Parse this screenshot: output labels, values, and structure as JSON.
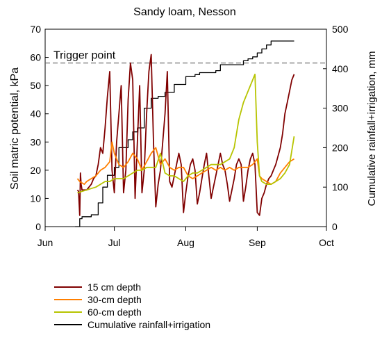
{
  "chart_data": {
    "type": "line",
    "title": "Sandy loam, Nesson",
    "xlabel": "",
    "ylabel": "Soil matric potential, kPa",
    "y2label": "Cumulative rainfall+irrigation, mm",
    "x_ticks": [
      {
        "label": "Jun",
        "day": 0
      },
      {
        "label": "Jul",
        "day": 30
      },
      {
        "label": "Aug",
        "day": 61
      },
      {
        "label": "Sep",
        "day": 92
      },
      {
        "label": "Oct",
        "day": 122
      }
    ],
    "ylim": [
      0,
      70
    ],
    "yticks": [
      0,
      10,
      20,
      30,
      40,
      50,
      60,
      70
    ],
    "y2lim": [
      0,
      500
    ],
    "y2ticks": [
      0,
      100,
      200,
      300,
      400,
      500
    ],
    "grid": false,
    "legend_position": "bottom-left",
    "annotations": [
      {
        "text": "Trigger point",
        "y": 58,
        "style": "dashed",
        "color": "#666666"
      }
    ],
    "series": [
      {
        "name": "15 cm depth",
        "color": "#800000",
        "axis": "left",
        "x": [
          14,
          14.5,
          15,
          15.3,
          15.6,
          16,
          17,
          18,
          20,
          21,
          22,
          23,
          24,
          25,
          26,
          27,
          28,
          29,
          30,
          31,
          32,
          33,
          34,
          35,
          36,
          37,
          38,
          39,
          40,
          41,
          42,
          43,
          44,
          45,
          46,
          47,
          48,
          49,
          50,
          51,
          52,
          53,
          54,
          55,
          56,
          57,
          58,
          59,
          60,
          61,
          62,
          63,
          64,
          65,
          66,
          67,
          68,
          69,
          70,
          71,
          72,
          73,
          74,
          75,
          76,
          77,
          78,
          79,
          80,
          81,
          82,
          83,
          84,
          85,
          86,
          87,
          88,
          89,
          90,
          91,
          92,
          93,
          94,
          95,
          96,
          97,
          98,
          99,
          100,
          101,
          102,
          103,
          104,
          105,
          106,
          107,
          108
        ],
        "y": [
          13,
          12.5,
          4,
          19,
          15,
          13,
          13,
          13,
          15,
          17,
          18,
          22,
          28,
          26,
          35,
          46,
          55,
          20,
          12,
          30,
          40,
          50,
          12,
          20,
          45,
          58,
          52,
          10,
          30,
          50,
          12,
          20,
          40,
          55,
          61,
          30,
          7,
          15,
          20,
          30,
          40,
          55,
          16,
          14,
          18,
          22,
          26,
          22,
          5,
          12,
          18,
          22,
          24,
          20,
          8,
          12,
          17,
          22,
          26,
          18,
          10,
          14,
          18,
          22,
          26,
          22,
          20,
          15,
          9,
          13,
          17,
          22,
          24,
          22,
          9,
          14,
          20,
          24,
          26,
          22,
          5,
          4,
          10,
          12,
          15,
          17,
          18,
          20,
          22,
          25,
          28,
          33,
          40,
          44,
          48,
          52,
          54
        ]
      },
      {
        "name": "30-cm depth",
        "color": "#ff7f00",
        "axis": "left",
        "x": [
          14,
          15,
          16,
          17,
          18,
          20,
          22,
          24,
          26,
          28,
          29,
          30,
          32,
          34,
          36,
          38,
          40,
          42,
          44,
          46,
          48,
          50,
          52,
          54,
          56,
          58,
          60,
          62,
          64,
          66,
          68,
          70,
          72,
          74,
          76,
          78,
          80,
          82,
          84,
          86,
          88,
          90,
          91,
          92,
          93,
          94,
          96,
          98,
          100,
          102,
          104,
          106,
          108
        ],
        "y": [
          17,
          16,
          15.5,
          15,
          16,
          17,
          18,
          20,
          21,
          23,
          30,
          26,
          22,
          21,
          23,
          26,
          24,
          20,
          23,
          26,
          28,
          22,
          24,
          21,
          20,
          21,
          21,
          18,
          17,
          18,
          19,
          20,
          21,
          20,
          21,
          20,
          21,
          20,
          21,
          21,
          21,
          22,
          23,
          24,
          18,
          17,
          16,
          15,
          16,
          19,
          21,
          23,
          24
        ]
      },
      {
        "name": "60-cm depth",
        "color": "#b7c400",
        "axis": "left",
        "x": [
          14,
          16,
          18,
          20,
          22,
          24,
          26,
          28,
          30,
          32,
          34,
          36,
          38,
          40,
          42,
          44,
          46,
          48,
          50,
          52,
          54,
          56,
          58,
          60,
          62,
          64,
          66,
          68,
          70,
          72,
          74,
          76,
          78,
          80,
          82,
          84,
          86,
          88,
          90,
          91,
          92,
          93,
          94,
          96,
          98,
          100,
          102,
          104,
          106,
          107,
          108
        ],
        "y": [
          12,
          12.5,
          13,
          13.5,
          14,
          15,
          16,
          16,
          17,
          17,
          17,
          18,
          19,
          20,
          20,
          21,
          21,
          21,
          26,
          19,
          18,
          18,
          17,
          16,
          18,
          19,
          19,
          20,
          21,
          22,
          22,
          22,
          23,
          24,
          28,
          38,
          44,
          48,
          52,
          54,
          30,
          18,
          16,
          15,
          15,
          16,
          17,
          19,
          22,
          27,
          32
        ]
      },
      {
        "name": "Cumulative rainfall+irrigation",
        "color": "#000000",
        "axis": "right",
        "x": [
          13,
          15,
          16,
          20,
          23,
          25,
          27,
          30,
          32,
          34,
          36,
          38,
          40,
          43,
          45,
          46,
          49,
          52,
          54,
          56,
          58,
          61,
          63,
          65,
          67,
          70,
          72,
          74,
          76,
          78,
          81,
          84,
          86,
          88,
          90,
          92,
          94,
          96,
          98,
          101,
          104,
          106,
          108
        ],
        "y": [
          0,
          20,
          25,
          30,
          60,
          100,
          130,
          150,
          200,
          200,
          220,
          240,
          250,
          300,
          300,
          325,
          330,
          340,
          340,
          360,
          360,
          380,
          380,
          385,
          390,
          390,
          390,
          395,
          410,
          410,
          410,
          410,
          420,
          425,
          430,
          440,
          450,
          460,
          470,
          470,
          470,
          470,
          470
        ]
      }
    ]
  }
}
